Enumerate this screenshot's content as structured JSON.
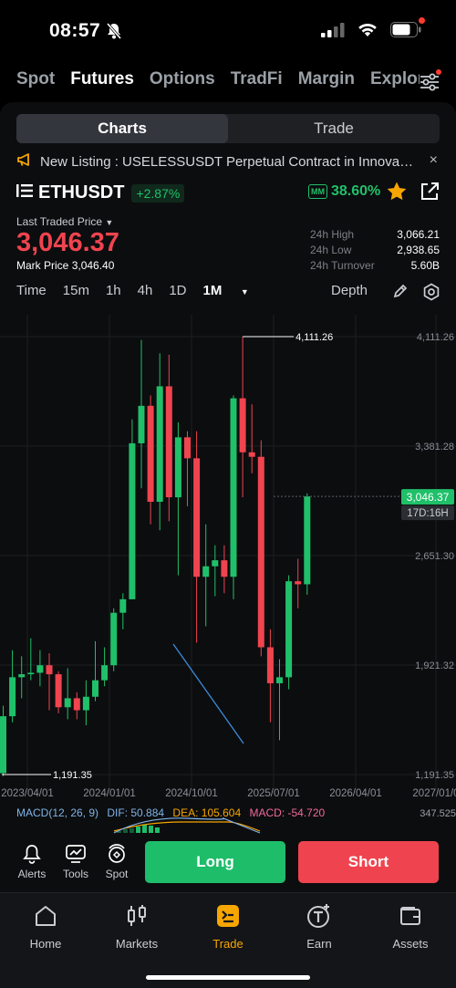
{
  "status_bar": {
    "time": "08:57"
  },
  "market_tabs": [
    {
      "label": "Spot",
      "active": false
    },
    {
      "label": "Futures",
      "active": true
    },
    {
      "label": "Options",
      "active": false
    },
    {
      "label": "TradFi",
      "active": false
    },
    {
      "label": "Margin",
      "active": false
    },
    {
      "label": "Explor",
      "active": false
    }
  ],
  "segment": {
    "charts": "Charts",
    "trade": "Trade"
  },
  "notice": {
    "text": "New Listing : USELESSUSDT Perpetual Contract in Innovation Zo...",
    "close": "×"
  },
  "symbol": {
    "name": "ETHUSDT",
    "change": "+2.87%",
    "mm_badge": "MM",
    "mm_value": "38.60%"
  },
  "price": {
    "last_label": "Last Traded Price",
    "last_value": "3,046.37",
    "mark_label": "Mark Price",
    "mark_value": "3,046.40"
  },
  "stats": [
    {
      "label": "24h High",
      "value": "3,066.21"
    },
    {
      "label": "24h Low",
      "value": "2,938.65"
    },
    {
      "label": "24h Turnover",
      "value": "5.60B"
    }
  ],
  "timeframes": [
    {
      "label": "Time",
      "active": false
    },
    {
      "label": "15m",
      "active": false
    },
    {
      "label": "1h",
      "active": false
    },
    {
      "label": "4h",
      "active": false
    },
    {
      "label": "1D",
      "active": false
    },
    {
      "label": "1M",
      "active": true
    }
  ],
  "depth_label": "Depth",
  "chart_data": {
    "type": "candlestick",
    "y_ticks": [
      "4,111.26",
      "3,381.28",
      "2,651.30",
      "1,921.32",
      "1,191.35"
    ],
    "x_ticks": [
      "2023/04/01",
      "2024/01/01",
      "2024/10/01",
      "2025/07/01",
      "2026/04/01",
      "2027/01/0"
    ],
    "high_label": "4,111.26",
    "low_label": "1,191.35",
    "current_price_label": "3,046.37",
    "countdown_label": "17D:16H",
    "ylim": [
      1191.35,
      4111.26
    ],
    "candles": [
      {
        "o": 1200,
        "c": 1580,
        "h": 1650,
        "l": 1180
      },
      {
        "o": 1580,
        "c": 1840,
        "h": 2020,
        "l": 1540
      },
      {
        "o": 1840,
        "c": 1860,
        "h": 1980,
        "l": 1700
      },
      {
        "o": 1860,
        "c": 1870,
        "h": 2100,
        "l": 1820
      },
      {
        "o": 1870,
        "c": 1920,
        "h": 2020,
        "l": 1780
      },
      {
        "o": 1920,
        "c": 1860,
        "h": 2000,
        "l": 1620
      },
      {
        "o": 1860,
        "c": 1640,
        "h": 1880,
        "l": 1600
      },
      {
        "o": 1640,
        "c": 1700,
        "h": 1900,
        "l": 1560
      },
      {
        "o": 1700,
        "c": 1620,
        "h": 1740,
        "l": 1560
      },
      {
        "o": 1620,
        "c": 1710,
        "h": 1820,
        "l": 1520
      },
      {
        "o": 1710,
        "c": 1820,
        "h": 2080,
        "l": 1680
      },
      {
        "o": 1820,
        "c": 1920,
        "h": 2040,
        "l": 1780
      },
      {
        "o": 1920,
        "c": 2270,
        "h": 2300,
        "l": 1880
      },
      {
        "o": 2270,
        "c": 2360,
        "h": 2400,
        "l": 2160
      },
      {
        "o": 2360,
        "c": 3400,
        "h": 3560,
        "l": 2360
      },
      {
        "o": 3400,
        "c": 3650,
        "h": 4090,
        "l": 3100
      },
      {
        "o": 3650,
        "c": 3010,
        "h": 3720,
        "l": 2860
      },
      {
        "o": 3010,
        "c": 3780,
        "h": 4000,
        "l": 2820
      },
      {
        "o": 3780,
        "c": 3040,
        "h": 3990,
        "l": 2880
      },
      {
        "o": 3040,
        "c": 3440,
        "h": 3540,
        "l": 2520
      },
      {
        "o": 3440,
        "c": 3300,
        "h": 3480,
        "l": 2980
      },
      {
        "o": 3300,
        "c": 2510,
        "h": 3480,
        "l": 2070
      },
      {
        "o": 2510,
        "c": 2580,
        "h": 2860,
        "l": 2180
      },
      {
        "o": 2580,
        "c": 2620,
        "h": 2720,
        "l": 2380
      },
      {
        "o": 2620,
        "c": 2510,
        "h": 2720,
        "l": 2400
      },
      {
        "o": 2510,
        "c": 3700,
        "h": 3720,
        "l": 2360
      },
      {
        "o": 3700,
        "c": 3340,
        "h": 4111,
        "l": 3040
      },
      {
        "o": 3340,
        "c": 3310,
        "h": 3660,
        "l": 3200
      },
      {
        "o": 3310,
        "c": 2040,
        "h": 3420,
        "l": 1980
      },
      {
        "o": 2040,
        "c": 1800,
        "h": 2160,
        "l": 1540
      },
      {
        "o": 1800,
        "c": 1840,
        "h": 1960,
        "l": 1420
      },
      {
        "o": 1840,
        "c": 2480,
        "h": 2520,
        "l": 1760
      },
      {
        "o": 2480,
        "c": 2460,
        "h": 2630,
        "l": 2300
      },
      {
        "o": 2460,
        "c": 3046,
        "h": 3066,
        "l": 2390
      }
    ]
  },
  "macd": {
    "label": "MACD(12, 26, 9)",
    "dif": "DIF: 50.884",
    "dea": "DEA: 105.604",
    "macd": "MACD: -54.720",
    "axis": "347.525"
  },
  "actions": {
    "alerts": "Alerts",
    "tools": "Tools",
    "spot": "Spot",
    "long": "Long",
    "short": "Short"
  },
  "nav": [
    {
      "label": "Home",
      "icon": "home-icon",
      "active": false
    },
    {
      "label": "Markets",
      "icon": "candles-icon",
      "active": false
    },
    {
      "label": "Trade",
      "icon": "trade-icon",
      "active": true
    },
    {
      "label": "Earn",
      "icon": "earn-icon",
      "active": false
    },
    {
      "label": "Assets",
      "icon": "wallet-icon",
      "active": false
    }
  ],
  "colors": {
    "up": "#20c06a",
    "down": "#f0444f",
    "accent": "#f7a600"
  }
}
